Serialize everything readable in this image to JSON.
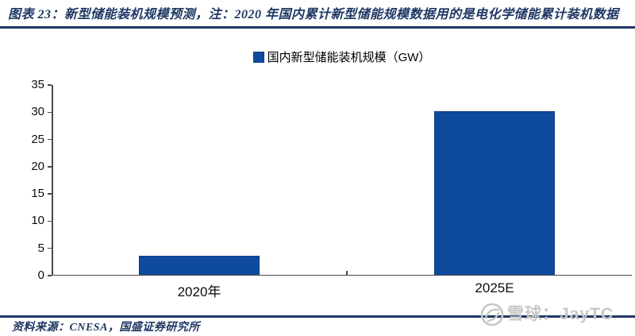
{
  "header": {
    "title": "图表 23：新型储能装机规模预测，注：2020 年国内累计新型储能规模数据用的是电化学储能累计装机数据"
  },
  "legend": {
    "label": "国内新型储能装机规模（GW）"
  },
  "chart_data": {
    "type": "bar",
    "title": "",
    "xlabel": "",
    "ylabel": "",
    "categories": [
      "2020年",
      "2025E"
    ],
    "series": [
      {
        "name": "国内新型储能装机规模（GW）",
        "values": [
          3.4,
          30
        ]
      }
    ],
    "unit": "GW",
    "ylim": [
      0,
      35
    ],
    "yticks": [
      0,
      5,
      10,
      15,
      20,
      25,
      30,
      35
    ],
    "grid": false,
    "legend_position": "top",
    "bar_color": "#0E4A9D"
  },
  "footer": {
    "source_label": "资料来源：CNESA，国盛证券研究所"
  },
  "watermark": {
    "site_label": "雪球：JayTC",
    "logo": "xueqiu-snowball-icon"
  },
  "colors": {
    "accent_navy": "#1F3864",
    "bar_blue": "#0E4A9D",
    "bar_border": "#0B3D85",
    "axis_gray": "#4a4a4a",
    "watermark_gray": "#c7c7c7"
  }
}
